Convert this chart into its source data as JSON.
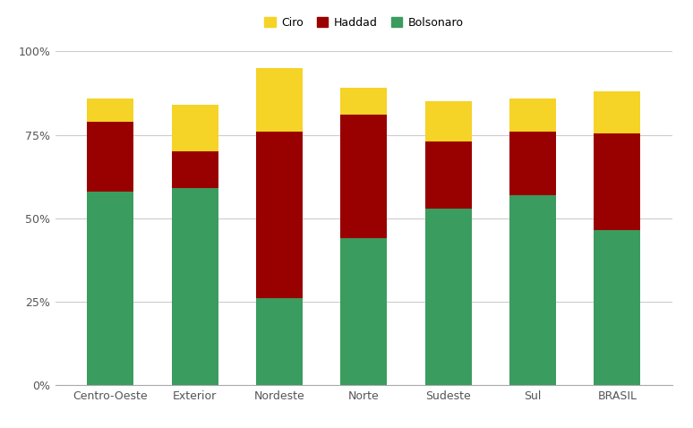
{
  "categories": [
    "Centro-Oeste",
    "Exterior",
    "Nordeste",
    "Norte",
    "Sudeste",
    "Sul",
    "BRASIL"
  ],
  "bolsonaro": [
    58.0,
    59.0,
    26.0,
    44.0,
    53.0,
    57.0,
    46.5
  ],
  "haddad": [
    21.0,
    11.0,
    50.0,
    37.0,
    20.0,
    19.0,
    29.0
  ],
  "ciro": [
    7.0,
    14.0,
    19.0,
    8.0,
    12.0,
    10.0,
    12.5
  ],
  "color_bolsonaro": "#3a9c5f",
  "color_haddad": "#990000",
  "color_ciro": "#f5d327",
  "background_color": "#ffffff",
  "grid_color": "#cccccc",
  "ylabel_ticks": [
    "0%",
    "25%",
    "50%",
    "75%",
    "100%"
  ],
  "yticks": [
    0,
    25,
    50,
    75,
    100
  ],
  "legend_labels": [
    "Ciro",
    "Haddad",
    "Bolsonaro"
  ],
  "figsize": [
    7.74,
    4.78
  ],
  "dpi": 100
}
